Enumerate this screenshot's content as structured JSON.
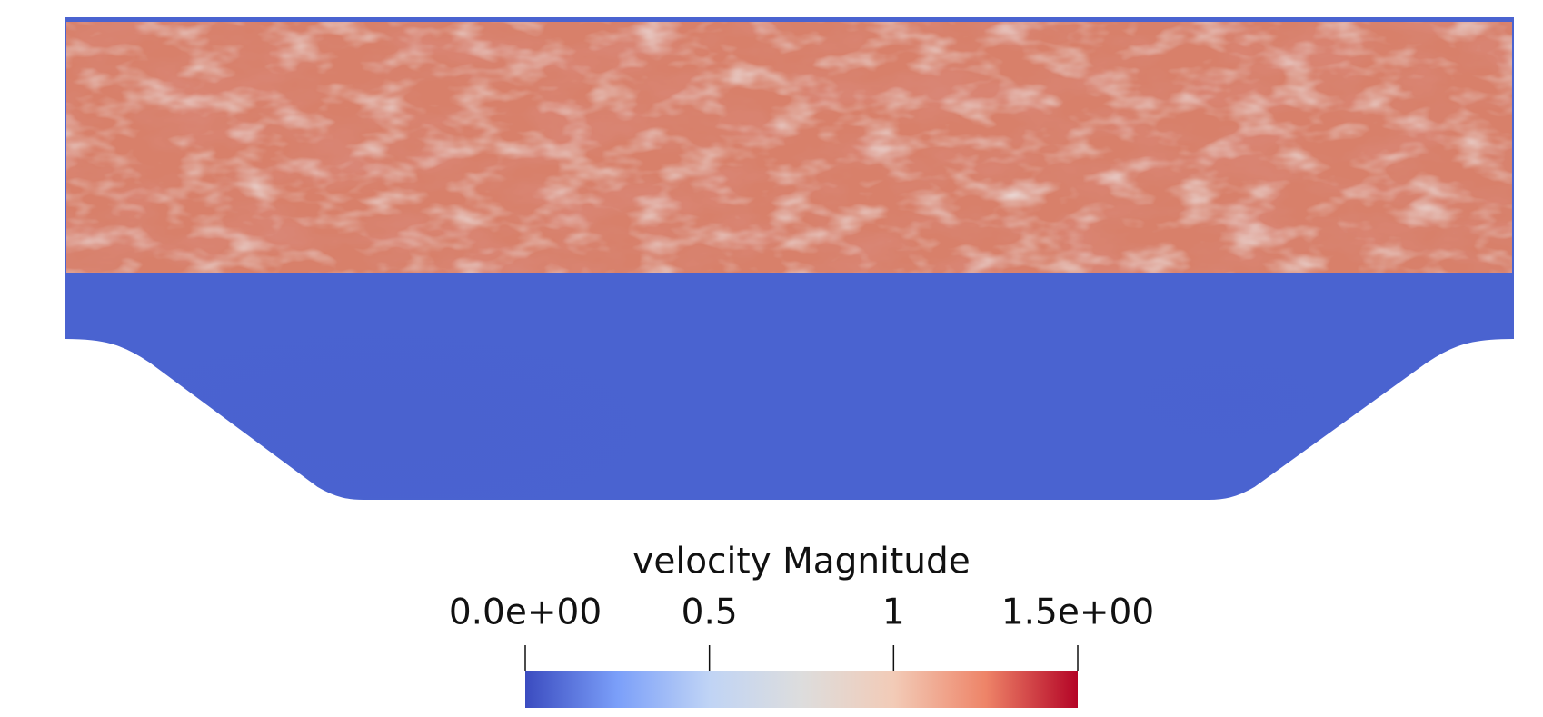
{
  "colorbar": {
    "title": "velocity Magnitude",
    "range": [
      0,
      1.5
    ],
    "ticks": [
      {
        "value": 0,
        "label": "0.0e+00"
      },
      0.5,
      1,
      {
        "value": 1.5,
        "label": "1.5e+00"
      }
    ],
    "colormap": [
      "#3b4cc0",
      "#7b9ff9",
      "#c0d4f5",
      "#dddddd",
      "#f2cbb7",
      "#ee8468",
      "#b40426"
    ]
  }
}
